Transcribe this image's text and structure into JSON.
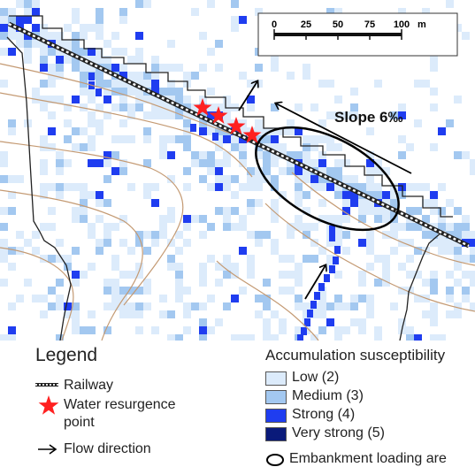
{
  "scale_bar": {
    "ticks": [
      "0",
      "25",
      "50",
      "75",
      "100"
    ],
    "unit": "m"
  },
  "annotations": {
    "slope": "Slope 6‰"
  },
  "legend": {
    "title": "Legend",
    "railway": "Railway",
    "water_resurgence_line1": "Water resurgence",
    "water_resurgence_line2": "point",
    "flow_direction": "Flow direction"
  },
  "susceptibility": {
    "title": "Accumulation susceptibility",
    "classes": [
      {
        "label": "Low (2)",
        "color": "#dcebfb"
      },
      {
        "label": "Medium (3)",
        "color": "#a3c8f0"
      },
      {
        "label": "Strong (4)",
        "color": "#1f3df0"
      },
      {
        "label": "Very strong (5)",
        "color": "#0a1a7a"
      }
    ],
    "embankment": "Embankment loading are"
  },
  "colors": {
    "contour": "#c49a73",
    "star": "#ff2020",
    "boundary": "#222222"
  }
}
